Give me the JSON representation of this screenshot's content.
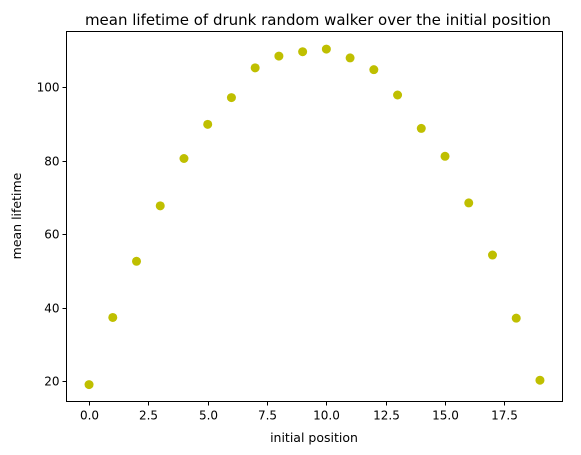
{
  "chart_data": {
    "type": "scatter",
    "title": "mean lifetime of drunk random walker over the initial position",
    "xlabel": "initial position",
    "ylabel": "mean lifetime",
    "xlim": [
      -0.95,
      19.95
    ],
    "ylim": [
      14.4,
      115.2
    ],
    "xticks": [
      0,
      2.5,
      5,
      7.5,
      10,
      12.5,
      15,
      17.5
    ],
    "xtick_labels": [
      "0.0",
      "2.5",
      "5.0",
      "7.5",
      "10.0",
      "12.5",
      "15.0",
      "17.5"
    ],
    "yticks": [
      20,
      40,
      60,
      80,
      100
    ],
    "ytick_labels": [
      "20",
      "40",
      "60",
      "80",
      "100"
    ],
    "grid": false,
    "marker_color": "#bfbf00",
    "series": [
      {
        "x": [
          0,
          1,
          2,
          3,
          4,
          5,
          6,
          7,
          8,
          9,
          10,
          11,
          12,
          13,
          14,
          15,
          16,
          17,
          18,
          19
        ],
        "y": [
          19.0,
          37.3,
          52.6,
          67.7,
          80.6,
          89.9,
          97.2,
          105.3,
          108.5,
          109.7,
          110.4,
          108.0,
          104.8,
          97.9,
          88.8,
          81.2,
          68.5,
          54.3,
          37.1,
          20.2
        ]
      }
    ]
  }
}
